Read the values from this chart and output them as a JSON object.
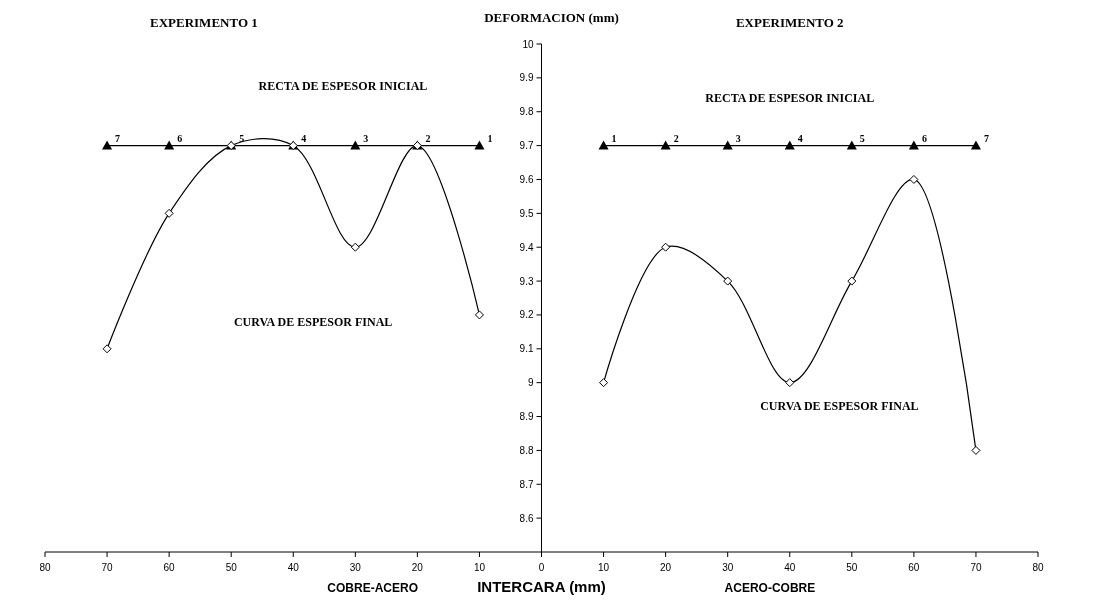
{
  "chart_data": {
    "type": "line",
    "ylabel": "DEFORMACION (mm)",
    "xlabel": "INTERCARA (mm)",
    "xlim": [
      -80,
      80
    ],
    "xticks": [
      {
        "value": -80,
        "label": "80"
      },
      {
        "value": -70,
        "label": "70"
      },
      {
        "value": -60,
        "label": "60"
      },
      {
        "value": -50,
        "label": "50"
      },
      {
        "value": -40,
        "label": "40"
      },
      {
        "value": -30,
        "label": "30"
      },
      {
        "value": -20,
        "label": "20"
      },
      {
        "value": -10,
        "label": "10"
      },
      0,
      10,
      20,
      30,
      40,
      50,
      60,
      70,
      80
    ],
    "ylim": [
      8.5,
      10
    ],
    "yticks": [
      8.6,
      8.7,
      8.8,
      8.9,
      9,
      9.1,
      9.2,
      9.3,
      9.4,
      9.5,
      9.6,
      9.7,
      9.8,
      9.9,
      10
    ],
    "grid": false,
    "line_style": "solid",
    "series": [
      {
        "color": "#000000",
        "marker": "triangle",
        "x": [
          -70,
          -60,
          -50,
          -40,
          -30,
          -20,
          -10
        ],
        "values": [
          9.7,
          9.7,
          9.7,
          9.7,
          9.7,
          9.7,
          9.7
        ]
      },
      {
        "color": "#000000",
        "marker": "diamond",
        "x": [
          -70,
          -60,
          -50,
          -40,
          -30,
          -20,
          -10
        ],
        "values": [
          9.1,
          9.5,
          9.7,
          9.7,
          9.4,
          9.7,
          9.2
        ]
      },
      {
        "color": "#000000",
        "marker": "triangle",
        "x": [
          10,
          20,
          30,
          40,
          50,
          60,
          70
        ],
        "values": [
          9.7,
          9.7,
          9.7,
          9.7,
          9.7,
          9.7,
          9.7
        ]
      },
      {
        "color": "#000000",
        "marker": "diamond",
        "x": [
          10,
          20,
          30,
          40,
          50,
          60,
          70
        ],
        "values": [
          9.0,
          9.4,
          9.3,
          9.0,
          9.3,
          9.6,
          8.8
        ]
      }
    ],
    "annotations": [
      "EXPERIMENTO 1",
      "EXPERIMENTO 2",
      "RECTA DE ESPESOR INICIAL",
      "RECTA DE ESPESOR INICIAL",
      "CURVA DE ESPESOR FINAL",
      "CURVA DE ESPESOR FINAL",
      "COBRE-ACERO",
      "ACERO-COBRE",
      {
        "text": "7",
        "x": -70,
        "y": 9.7
      },
      {
        "text": "6",
        "x": -60,
        "y": 9.7
      },
      {
        "text": "5",
        "x": -50,
        "y": 9.7
      },
      {
        "text": "4",
        "x": -40,
        "y": 9.7
      },
      {
        "text": "3",
        "x": -30,
        "y": 9.7
      },
      {
        "text": "2",
        "x": -20,
        "y": 9.7
      },
      {
        "text": "1",
        "x": -10,
        "y": 9.7
      },
      {
        "text": "1",
        "x": 10,
        "y": 9.7
      },
      {
        "text": "2",
        "x": 20,
        "y": 9.7
      },
      {
        "text": "3",
        "x": 30,
        "y": 9.7
      },
      {
        "text": "4",
        "x": 40,
        "y": 9.7
      },
      {
        "text": "5",
        "x": 50,
        "y": 9.7
      },
      {
        "text": "6",
        "x": 60,
        "y": 9.7
      },
      {
        "text": "7",
        "x": 70,
        "y": 9.7
      }
    ]
  }
}
